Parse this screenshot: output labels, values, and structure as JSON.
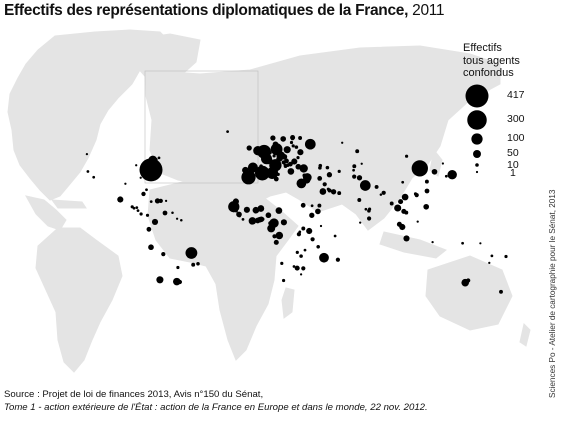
{
  "title": {
    "bold": "Effectifs des représentations diplomatiques de la France,",
    "year": "2011"
  },
  "legend": {
    "title_lines": [
      "Effectifs",
      "tous agents",
      "confondus"
    ],
    "entries": [
      {
        "label": "417",
        "value": 417
      },
      {
        "label": "300",
        "value": 300
      },
      {
        "label": "100",
        "value": 100
      },
      {
        "label": "50",
        "value": 50
      },
      {
        "label": "10",
        "value": 10
      },
      {
        "label": "1",
        "value": 1
      }
    ]
  },
  "source": {
    "line1": "Source : Projet de loi de finances 2013, Avis n°150 du Sénat,",
    "line2": "Tome 1 - action extérieure de l'État : action de la France en Europe et dans le monde, 22 nov. 2012."
  },
  "credit": "Sciences Po - Atelier de cartographie pour le Sénat, 2013",
  "colors": {
    "land": "#e4e4e4",
    "ocean": "#ffffff",
    "symbol": "#000000"
  },
  "chart_data": {
    "type": "map-proportional-symbols",
    "symbols": [
      {
        "lon": -77.0,
        "lat": 38.9,
        "value": 417
      },
      {
        "lon": -75.7,
        "lat": 45.4,
        "value": 60
      },
      {
        "lon": -73.6,
        "lat": 45.5,
        "value": 12
      },
      {
        "lon": -71.2,
        "lat": 46.8,
        "value": 6
      },
      {
        "lon": -74.0,
        "lat": 40.7,
        "value": 8
      },
      {
        "lon": -71.0,
        "lat": 42.4,
        "value": 5
      },
      {
        "lon": -87.6,
        "lat": 41.9,
        "value": 4
      },
      {
        "lon": -84.4,
        "lat": 33.7,
        "value": 4
      },
      {
        "lon": -80.2,
        "lat": 25.8,
        "value": 6
      },
      {
        "lon": -95.4,
        "lat": 29.8,
        "value": 4
      },
      {
        "lon": -118.2,
        "lat": 34.1,
        "value": 6
      },
      {
        "lon": -122.4,
        "lat": 37.8,
        "value": 6
      },
      {
        "lon": -123.1,
        "lat": 49.3,
        "value": 4
      },
      {
        "lon": -99.1,
        "lat": 19.4,
        "value": 30
      },
      {
        "lon": -90.5,
        "lat": 14.6,
        "value": 8
      },
      {
        "lon": -89.2,
        "lat": 13.7,
        "value": 6
      },
      {
        "lon": -87.2,
        "lat": 14.1,
        "value": 6
      },
      {
        "lon": -86.3,
        "lat": 12.1,
        "value": 6
      },
      {
        "lon": -84.1,
        "lat": 9.9,
        "value": 8
      },
      {
        "lon": -79.5,
        "lat": 9.0,
        "value": 8
      },
      {
        "lon": -82.4,
        "lat": 23.1,
        "value": 15
      },
      {
        "lon": -76.8,
        "lat": 18.0,
        "value": 6
      },
      {
        "lon": -72.3,
        "lat": 18.5,
        "value": 22
      },
      {
        "lon": -69.9,
        "lat": 18.5,
        "value": 14
      },
      {
        "lon": -66.1,
        "lat": 18.5,
        "value": 4
      },
      {
        "lon": -61.5,
        "lat": 10.7,
        "value": 5
      },
      {
        "lon": -66.9,
        "lat": 10.5,
        "value": 18
      },
      {
        "lon": -74.1,
        "lat": 4.7,
        "value": 30
      },
      {
        "lon": -78.5,
        "lat": -0.2,
        "value": 18
      },
      {
        "lon": -77.0,
        "lat": -12.0,
        "value": 25
      },
      {
        "lon": -68.1,
        "lat": -16.5,
        "value": 14
      },
      {
        "lon": -47.9,
        "lat": -15.8,
        "value": 110
      },
      {
        "lon": -43.2,
        "lat": -22.9,
        "value": 10
      },
      {
        "lon": -46.6,
        "lat": -23.5,
        "value": 12
      },
      {
        "lon": -57.6,
        "lat": -25.3,
        "value": 8
      },
      {
        "lon": -56.2,
        "lat": -34.9,
        "value": 14
      },
      {
        "lon": -58.4,
        "lat": -34.6,
        "value": 45
      },
      {
        "lon": -70.6,
        "lat": -33.4,
        "value": 40
      },
      {
        "lon": -55.2,
        "lat": 5.8,
        "value": 5
      },
      {
        "lon": -58.2,
        "lat": 6.8,
        "value": 4
      },
      {
        "lon": 2.0,
        "lat": 50.0,
        "value": 0
      },
      {
        "lon": -0.1,
        "lat": 51.5,
        "value": 70
      },
      {
        "lon": -6.3,
        "lat": 53.3,
        "value": 22
      },
      {
        "lon": 4.4,
        "lat": 50.8,
        "value": 150
      },
      {
        "lon": 4.9,
        "lat": 52.4,
        "value": 25
      },
      {
        "lon": 6.1,
        "lat": 49.6,
        "value": 20
      },
      {
        "lon": 8.7,
        "lat": 50.1,
        "value": 8
      },
      {
        "lon": 13.4,
        "lat": 52.5,
        "value": 110
      },
      {
        "lon": 11.6,
        "lat": 48.1,
        "value": 8
      },
      {
        "lon": 7.4,
        "lat": 46.9,
        "value": 30
      },
      {
        "lon": 6.1,
        "lat": 46.2,
        "value": 95
      },
      {
        "lon": 12.5,
        "lat": 41.9,
        "value": 120
      },
      {
        "lon": 9.2,
        "lat": 45.5,
        "value": 8
      },
      {
        "lon": -3.7,
        "lat": 40.4,
        "value": 80
      },
      {
        "lon": 2.2,
        "lat": 41.4,
        "value": 10
      },
      {
        "lon": -9.1,
        "lat": 38.7,
        "value": 35
      },
      {
        "lon": 16.4,
        "lat": 48.2,
        "value": 60
      },
      {
        "lon": 14.4,
        "lat": 50.1,
        "value": 22
      },
      {
        "lon": 19.0,
        "lat": 47.5,
        "value": 25
      },
      {
        "lon": 21.0,
        "lat": 52.2,
        "value": 40
      },
      {
        "lon": 17.1,
        "lat": 48.1,
        "value": 14
      },
      {
        "lon": 14.5,
        "lat": 46.1,
        "value": 12
      },
      {
        "lon": 16.0,
        "lat": 45.8,
        "value": 14
      },
      {
        "lon": 20.5,
        "lat": 44.8,
        "value": 18
      },
      {
        "lon": 18.4,
        "lat": 43.9,
        "value": 12
      },
      {
        "lon": 19.3,
        "lat": 42.4,
        "value": 6
      },
      {
        "lon": 19.8,
        "lat": 41.3,
        "value": 10
      },
      {
        "lon": 21.4,
        "lat": 42.0,
        "value": 10
      },
      {
        "lon": 23.3,
        "lat": 42.7,
        "value": 18
      },
      {
        "lon": 26.1,
        "lat": 44.4,
        "value": 30
      },
      {
        "lon": 28.8,
        "lat": 47.0,
        "value": 8
      },
      {
        "lon": 30.5,
        "lat": 50.5,
        "value": 30
      },
      {
        "lon": 27.6,
        "lat": 53.9,
        "value": 10
      },
      {
        "lon": 23.7,
        "lat": 37.9,
        "value": 35
      },
      {
        "lon": 33.4,
        "lat": 35.2,
        "value": 12
      },
      {
        "lon": 14.5,
        "lat": 35.9,
        "value": 8
      },
      {
        "lon": 7.4,
        "lat": 43.7,
        "value": 8
      },
      {
        "lon": 12.6,
        "lat": 55.7,
        "value": 25
      },
      {
        "lon": 10.7,
        "lat": 59.9,
        "value": 22
      },
      {
        "lon": 18.1,
        "lat": 59.3,
        "value": 25
      },
      {
        "lon": 24.9,
        "lat": 60.2,
        "value": 20
      },
      {
        "lon": 24.8,
        "lat": 59.4,
        "value": 8
      },
      {
        "lon": 24.1,
        "lat": 56.9,
        "value": 8
      },
      {
        "lon": 25.3,
        "lat": 54.7,
        "value": 8
      },
      {
        "lon": -21.9,
        "lat": 64.1,
        "value": 6
      },
      {
        "lon": 30.3,
        "lat": 59.9,
        "value": 12
      },
      {
        "lon": 37.6,
        "lat": 55.8,
        "value": 90
      },
      {
        "lon": 60.6,
        "lat": 56.8,
        "value": 4
      },
      {
        "lon": 32.9,
        "lat": 39.9,
        "value": 55
      },
      {
        "lon": 29.0,
        "lat": 41.0,
        "value": 25
      },
      {
        "lon": 44.8,
        "lat": 41.7,
        "value": 10
      },
      {
        "lon": 44.5,
        "lat": 40.2,
        "value": 10
      },
      {
        "lon": 49.9,
        "lat": 40.4,
        "value": 10
      },
      {
        "lon": 71.4,
        "lat": 51.2,
        "value": 12
      },
      {
        "lon": 69.3,
        "lat": 41.3,
        "value": 12
      },
      {
        "lon": 58.4,
        "lat": 37.9,
        "value": 8
      },
      {
        "lon": 68.8,
        "lat": 38.6,
        "value": 6
      },
      {
        "lon": 74.6,
        "lat": 42.9,
        "value": 4
      },
      {
        "lon": 69.2,
        "lat": 34.5,
        "value": 14
      },
      {
        "lon": 73.0,
        "lat": 33.7,
        "value": 22
      },
      {
        "lon": 51.4,
        "lat": 35.7,
        "value": 22
      },
      {
        "lon": 35.5,
        "lat": 33.9,
        "value": 60
      },
      {
        "lon": 36.3,
        "lat": 33.5,
        "value": 18
      },
      {
        "lon": 35.9,
        "lat": 31.9,
        "value": 18
      },
      {
        "lon": 34.8,
        "lat": 32.1,
        "value": 35
      },
      {
        "lon": 35.2,
        "lat": 31.8,
        "value": 25
      },
      {
        "lon": 44.4,
        "lat": 33.3,
        "value": 18
      },
      {
        "lon": 48.0,
        "lat": 29.4,
        "value": 14
      },
      {
        "lon": 46.7,
        "lat": 24.7,
        "value": 35
      },
      {
        "lon": 50.6,
        "lat": 26.2,
        "value": 8
      },
      {
        "lon": 51.5,
        "lat": 25.3,
        "value": 12
      },
      {
        "lon": 54.4,
        "lat": 24.5,
        "value": 22
      },
      {
        "lon": 58.4,
        "lat": 23.6,
        "value": 12
      },
      {
        "lon": 44.2,
        "lat": 15.4,
        "value": 12
      },
      {
        "lon": 43.1,
        "lat": 11.6,
        "value": 25
      },
      {
        "lon": 38.7,
        "lat": 9.0,
        "value": 22
      },
      {
        "lon": 38.9,
        "lat": 15.3,
        "value": 6
      },
      {
        "lon": 32.5,
        "lat": 15.6,
        "value": 18
      },
      {
        "lon": 31.2,
        "lat": 30.0,
        "value": 75
      },
      {
        "lon": 13.2,
        "lat": 32.9,
        "value": 18
      },
      {
        "lon": 10.2,
        "lat": 36.8,
        "value": 110
      },
      {
        "lon": 3.1,
        "lat": 36.8,
        "value": 170
      },
      {
        "lon": -6.8,
        "lat": 34.0,
        "value": 160
      },
      {
        "lon": -15.9,
        "lat": 18.1,
        "value": 30
      },
      {
        "lon": -8.0,
        "lat": 12.6,
        "value": 30
      },
      {
        "lon": -17.4,
        "lat": 14.7,
        "value": 100
      },
      {
        "lon": -16.6,
        "lat": 13.5,
        "value": 6
      },
      {
        "lon": -15.6,
        "lat": 11.9,
        "value": 8
      },
      {
        "lon": -13.7,
        "lat": 9.6,
        "value": 25
      },
      {
        "lon": -13.2,
        "lat": 8.5,
        "value": 5
      },
      {
        "lon": -10.8,
        "lat": 6.3,
        "value": 6
      },
      {
        "lon": -4.0,
        "lat": 5.3,
        "value": 45
      },
      {
        "lon": -1.5,
        "lat": 12.4,
        "value": 35
      },
      {
        "lon": 2.1,
        "lat": 13.5,
        "value": 35
      },
      {
        "lon": -0.2,
        "lat": 5.6,
        "value": 25
      },
      {
        "lon": 1.2,
        "lat": 6.1,
        "value": 25
      },
      {
        "lon": 2.4,
        "lat": 6.4,
        "value": 25
      },
      {
        "lon": 7.5,
        "lat": 9.1,
        "value": 25
      },
      {
        "lon": 3.4,
        "lat": 6.5,
        "value": 10
      },
      {
        "lon": 15.0,
        "lat": 12.1,
        "value": 35
      },
      {
        "lon": 11.5,
        "lat": 3.9,
        "value": 70
      },
      {
        "lon": 9.7,
        "lat": 4.0,
        "value": 10
      },
      {
        "lon": 8.8,
        "lat": 3.8,
        "value": 12
      },
      {
        "lon": 9.5,
        "lat": 0.4,
        "value": 50
      },
      {
        "lon": 18.6,
        "lat": 4.4,
        "value": 30
      },
      {
        "lon": 15.3,
        "lat": -4.3,
        "value": 45
      },
      {
        "lon": 15.3,
        "lat": -4.4,
        "value": 14
      },
      {
        "lon": 11.9,
        "lat": -4.8,
        "value": 14
      },
      {
        "lon": 13.2,
        "lat": -8.8,
        "value": 20
      },
      {
        "lon": 30.1,
        "lat": -1.9,
        "value": 6
      },
      {
        "lon": 29.4,
        "lat": -3.4,
        "value": 14
      },
      {
        "lon": 32.6,
        "lat": 0.3,
        "value": 12
      },
      {
        "lon": 36.8,
        "lat": -1.3,
        "value": 30
      },
      {
        "lon": 45.3,
        "lat": 2.0,
        "value": 4
      },
      {
        "lon": 39.3,
        "lat": -6.8,
        "value": 14
      },
      {
        "lon": 28.3,
        "lat": -15.4,
        "value": 8
      },
      {
        "lon": 31.0,
        "lat": -17.8,
        "value": 10
      },
      {
        "lon": 33.8,
        "lat": -13.9,
        "value": 6
      },
      {
        "lon": 32.6,
        "lat": -25.9,
        "value": 14
      },
      {
        "lon": 17.1,
        "lat": -22.6,
        "value": 8
      },
      {
        "lon": 25.9,
        "lat": -24.7,
        "value": 6
      },
      {
        "lon": 28.2,
        "lat": -25.7,
        "value": 20
      },
      {
        "lon": 18.4,
        "lat": -33.9,
        "value": 8
      },
      {
        "lon": 31.0,
        "lat": -29.9,
        "value": 4
      },
      {
        "lon": 47.5,
        "lat": -18.9,
        "value": 75
      },
      {
        "lon": 43.3,
        "lat": -11.7,
        "value": 10
      },
      {
        "lon": 57.5,
        "lat": -20.2,
        "value": 14
      },
      {
        "lon": 55.5,
        "lat": -4.6,
        "value": 6
      },
      {
        "lon": 77.2,
        "lat": 28.6,
        "value": 90
      },
      {
        "lon": 72.9,
        "lat": 19.1,
        "value": 12
      },
      {
        "lon": 80.3,
        "lat": 13.1,
        "value": 8
      },
      {
        "lon": 88.4,
        "lat": 22.6,
        "value": 5
      },
      {
        "lon": 79.8,
        "lat": 11.9,
        "value": 10
      },
      {
        "lon": 77.6,
        "lat": 13.0,
        "value": 6
      },
      {
        "lon": 79.9,
        "lat": 6.9,
        "value": 14
      },
      {
        "lon": 73.5,
        "lat": 4.2,
        "value": 4
      },
      {
        "lon": 85.3,
        "lat": 27.7,
        "value": 12
      },
      {
        "lon": 90.4,
        "lat": 23.8,
        "value": 14
      },
      {
        "lon": 96.2,
        "lat": 16.8,
        "value": 12
      },
      {
        "lon": 100.5,
        "lat": 13.8,
        "value": 40
      },
      {
        "lon": 102.6,
        "lat": 18.0,
        "value": 20
      },
      {
        "lon": 104.9,
        "lat": 11.6,
        "value": 20
      },
      {
        "lon": 105.8,
        "lat": 21.0,
        "value": 35
      },
      {
        "lon": 106.7,
        "lat": 10.8,
        "value": 12
      },
      {
        "lon": 101.7,
        "lat": 3.1,
        "value": 20
      },
      {
        "lon": 103.8,
        "lat": 1.3,
        "value": 30
      },
      {
        "lon": 106.8,
        "lat": -6.2,
        "value": 30
      },
      {
        "lon": 121.0,
        "lat": 14.6,
        "value": 25
      },
      {
        "lon": 114.9,
        "lat": 4.9,
        "value": 4
      },
      {
        "lon": 125.6,
        "lat": -8.6,
        "value": 4
      },
      {
        "lon": 116.4,
        "lat": 39.9,
        "value": 210
      },
      {
        "lon": 121.5,
        "lat": 31.2,
        "value": 12
      },
      {
        "lon": 113.3,
        "lat": 23.1,
        "value": 8
      },
      {
        "lon": 114.2,
        "lat": 22.3,
        "value": 14
      },
      {
        "lon": 104.1,
        "lat": 30.7,
        "value": 6
      },
      {
        "lon": 121.6,
        "lat": 25.0,
        "value": 18
      },
      {
        "lon": 106.9,
        "lat": 47.9,
        "value": 8
      },
      {
        "lon": 127.0,
        "lat": 37.6,
        "value": 25
      },
      {
        "lon": 139.7,
        "lat": 35.7,
        "value": 70
      },
      {
        "lon": 135.5,
        "lat": 34.7,
        "value": 6
      },
      {
        "lon": 133.0,
        "lat": 43.1,
        "value": 2
      },
      {
        "lon": 149.1,
        "lat": -35.3,
        "value": 45
      },
      {
        "lon": 151.2,
        "lat": -33.9,
        "value": 14
      },
      {
        "lon": 174.8,
        "lat": -41.3,
        "value": 12
      },
      {
        "lon": 166.4,
        "lat": -22.3,
        "value": 4
      },
      {
        "lon": 168.3,
        "lat": -17.7,
        "value": 6
      },
      {
        "lon": 178.4,
        "lat": -18.1,
        "value": 8
      },
      {
        "lon": 147.2,
        "lat": -9.4,
        "value": 6
      },
      {
        "lon": 160.0,
        "lat": -9.4,
        "value": 2
      }
    ]
  }
}
